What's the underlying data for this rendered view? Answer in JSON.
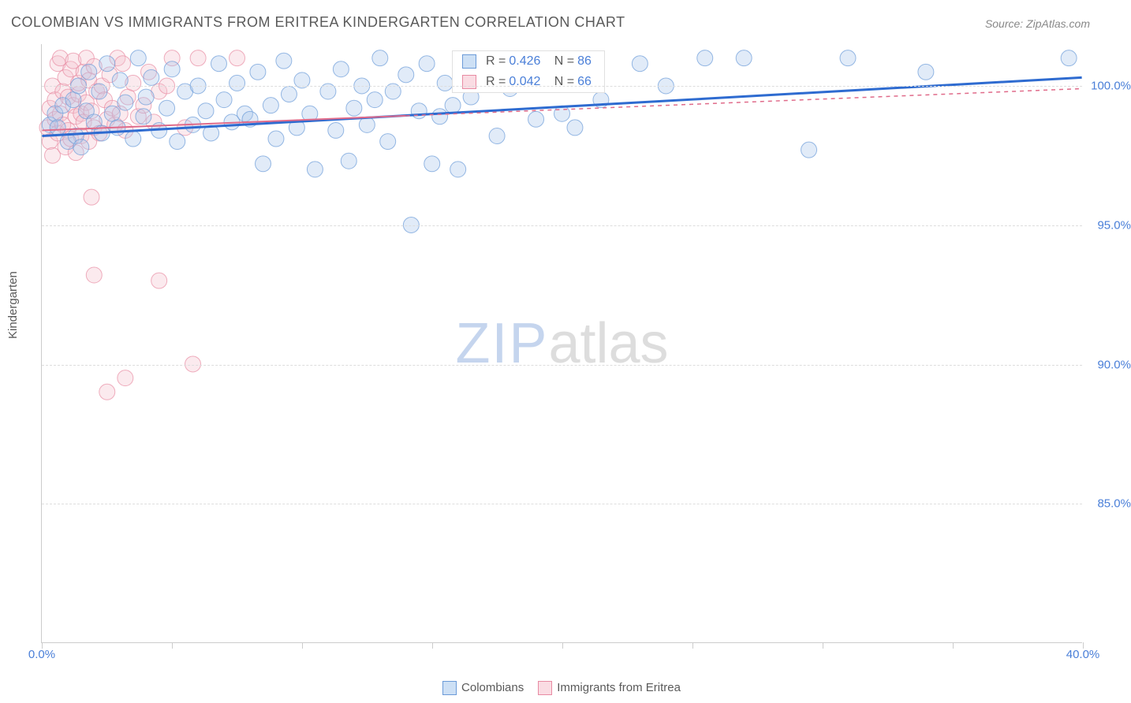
{
  "title": "COLOMBIAN VS IMMIGRANTS FROM ERITREA KINDERGARTEN CORRELATION CHART",
  "source_label": "Source: ZipAtlas.com",
  "y_axis_label": "Kindergarten",
  "watermark": {
    "part1": "ZIP",
    "part2": "atlas"
  },
  "chart": {
    "type": "scatter",
    "background_color": "#ffffff",
    "grid_color": "#dddddd",
    "axis_color": "#cccccc",
    "tick_label_color": "#4a7fd8",
    "text_color": "#5a5a5a",
    "xlim": [
      0,
      40
    ],
    "ylim": [
      80,
      101.5
    ],
    "y_ticks": [
      85,
      90,
      95,
      100
    ],
    "y_tick_labels": [
      "85.0%",
      "90.0%",
      "95.0%",
      "100.0%"
    ],
    "x_ticks": [
      0,
      5,
      10,
      15,
      20,
      25,
      30,
      35,
      40
    ],
    "x_tick_labels": [
      "0.0%",
      "",
      "",
      "",
      "",
      "",
      "",
      "",
      "40.0%"
    ],
    "marker_radius": 10,
    "marker_opacity": 0.35,
    "series": [
      {
        "name": "Colombians",
        "color_fill": "#a9c6ec",
        "color_stroke": "#6b9bd8",
        "swatch_fill": "#cde0f5",
        "swatch_border": "#6b9bd8",
        "R": "0.426",
        "N": "86",
        "trend": {
          "x1": 0,
          "y1": 98.2,
          "x2": 40,
          "y2": 100.3,
          "solid_to_x": 40,
          "stroke": "#2e6bd0",
          "width": 3
        },
        "points": [
          [
            0.3,
            98.6
          ],
          [
            0.5,
            99.0
          ],
          [
            0.6,
            98.5
          ],
          [
            0.8,
            99.3
          ],
          [
            1.0,
            98.0
          ],
          [
            1.2,
            99.5
          ],
          [
            1.3,
            98.2
          ],
          [
            1.4,
            100.0
          ],
          [
            1.5,
            97.8
          ],
          [
            1.7,
            99.1
          ],
          [
            1.8,
            100.5
          ],
          [
            2.0,
            98.7
          ],
          [
            2.2,
            99.8
          ],
          [
            2.3,
            98.3
          ],
          [
            2.5,
            100.8
          ],
          [
            2.7,
            99.0
          ],
          [
            2.9,
            98.5
          ],
          [
            3.0,
            100.2
          ],
          [
            3.2,
            99.4
          ],
          [
            3.5,
            98.1
          ],
          [
            3.7,
            101.0
          ],
          [
            3.9,
            98.9
          ],
          [
            4.0,
            99.6
          ],
          [
            4.2,
            100.3
          ],
          [
            4.5,
            98.4
          ],
          [
            4.8,
            99.2
          ],
          [
            5.0,
            100.6
          ],
          [
            5.2,
            98.0
          ],
          [
            5.5,
            99.8
          ],
          [
            5.8,
            98.6
          ],
          [
            6.0,
            100.0
          ],
          [
            6.3,
            99.1
          ],
          [
            6.5,
            98.3
          ],
          [
            6.8,
            100.8
          ],
          [
            7.0,
            99.5
          ],
          [
            7.3,
            98.7
          ],
          [
            7.5,
            100.1
          ],
          [
            7.8,
            99.0
          ],
          [
            8.0,
            98.8
          ],
          [
            8.3,
            100.5
          ],
          [
            8.5,
            97.2
          ],
          [
            8.8,
            99.3
          ],
          [
            9.0,
            98.1
          ],
          [
            9.3,
            100.9
          ],
          [
            9.5,
            99.7
          ],
          [
            9.8,
            98.5
          ],
          [
            10.0,
            100.2
          ],
          [
            10.3,
            99.0
          ],
          [
            10.5,
            97.0
          ],
          [
            11.0,
            99.8
          ],
          [
            11.3,
            98.4
          ],
          [
            11.5,
            100.6
          ],
          [
            11.8,
            97.3
          ],
          [
            12.0,
            99.2
          ],
          [
            12.3,
            100.0
          ],
          [
            12.5,
            98.6
          ],
          [
            12.8,
            99.5
          ],
          [
            13.0,
            101.0
          ],
          [
            13.3,
            98.0
          ],
          [
            13.5,
            99.8
          ],
          [
            14.0,
            100.4
          ],
          [
            14.2,
            95.0
          ],
          [
            14.5,
            99.1
          ],
          [
            14.8,
            100.8
          ],
          [
            15.0,
            97.2
          ],
          [
            15.3,
            98.9
          ],
          [
            15.5,
            100.1
          ],
          [
            15.8,
            99.3
          ],
          [
            16.0,
            97.0
          ],
          [
            16.5,
            99.6
          ],
          [
            17.0,
            100.5
          ],
          [
            17.5,
            98.2
          ],
          [
            18.0,
            99.9
          ],
          [
            18.5,
            100.7
          ],
          [
            19.0,
            98.8
          ],
          [
            20.0,
            99.0
          ],
          [
            20.5,
            98.5
          ],
          [
            21.5,
            99.5
          ],
          [
            23.0,
            100.8
          ],
          [
            24.0,
            100.0
          ],
          [
            25.5,
            101.0
          ],
          [
            27.0,
            101.0
          ],
          [
            29.5,
            97.7
          ],
          [
            31.0,
            101.0
          ],
          [
            34.0,
            100.5
          ],
          [
            39.5,
            101.0
          ]
        ]
      },
      {
        "name": "Immigrants from Eritrea",
        "color_fill": "#f4c2ce",
        "color_stroke": "#e88ba3",
        "swatch_fill": "#fadce3",
        "swatch_border": "#e88ba3",
        "R": "0.042",
        "N": "66",
        "trend": {
          "x1": 0,
          "y1": 98.4,
          "x2": 40,
          "y2": 99.9,
          "solid_to_x": 14,
          "stroke": "#e06b8a",
          "width": 2
        },
        "points": [
          [
            0.2,
            98.5
          ],
          [
            0.3,
            99.2
          ],
          [
            0.3,
            98.0
          ],
          [
            0.4,
            100.0
          ],
          [
            0.4,
            97.5
          ],
          [
            0.5,
            99.5
          ],
          [
            0.5,
            98.8
          ],
          [
            0.6,
            100.8
          ],
          [
            0.6,
            98.3
          ],
          [
            0.7,
            99.0
          ],
          [
            0.7,
            101.0
          ],
          [
            0.8,
            98.6
          ],
          [
            0.8,
            99.8
          ],
          [
            0.9,
            97.8
          ],
          [
            0.9,
            100.3
          ],
          [
            1.0,
            98.4
          ],
          [
            1.0,
            99.6
          ],
          [
            1.1,
            100.6
          ],
          [
            1.1,
            98.1
          ],
          [
            1.2,
            99.3
          ],
          [
            1.2,
            100.9
          ],
          [
            1.3,
            98.9
          ],
          [
            1.3,
            97.6
          ],
          [
            1.4,
            99.7
          ],
          [
            1.4,
            100.1
          ],
          [
            1.5,
            98.2
          ],
          [
            1.5,
            99.0
          ],
          [
            1.6,
            100.5
          ],
          [
            1.6,
            98.7
          ],
          [
            1.7,
            101.0
          ],
          [
            1.7,
            99.4
          ],
          [
            1.8,
            98.0
          ],
          [
            1.8,
            100.2
          ],
          [
            1.9,
            99.1
          ],
          [
            1.9,
            96.0
          ],
          [
            2.0,
            98.5
          ],
          [
            2.0,
            100.7
          ],
          [
            2.1,
            99.8
          ],
          [
            2.2,
            98.3
          ],
          [
            2.3,
            100.0
          ],
          [
            2.4,
            99.5
          ],
          [
            2.5,
            98.8
          ],
          [
            2.6,
            100.4
          ],
          [
            2.7,
            99.2
          ],
          [
            2.8,
            98.6
          ],
          [
            2.9,
            101.0
          ],
          [
            3.0,
            99.0
          ],
          [
            3.1,
            100.8
          ],
          [
            3.2,
            98.4
          ],
          [
            3.3,
            99.6
          ],
          [
            3.5,
            100.1
          ],
          [
            3.7,
            98.9
          ],
          [
            3.9,
            99.3
          ],
          [
            4.1,
            100.5
          ],
          [
            4.3,
            98.7
          ],
          [
            4.5,
            99.8
          ],
          [
            4.8,
            100.0
          ],
          [
            5.0,
            101.0
          ],
          [
            5.5,
            98.5
          ],
          [
            6.0,
            101.0
          ],
          [
            2.0,
            93.2
          ],
          [
            2.5,
            89.0
          ],
          [
            3.2,
            89.5
          ],
          [
            4.5,
            93.0
          ],
          [
            5.8,
            90.0
          ],
          [
            7.5,
            101.0
          ]
        ]
      }
    ]
  },
  "stats_box": {
    "rows": [
      {
        "swatch_fill": "#cde0f5",
        "swatch_border": "#6b9bd8",
        "r_label": "R =",
        "r_val": "0.426",
        "n_label": "N =",
        "n_val": "86"
      },
      {
        "swatch_fill": "#fadce3",
        "swatch_border": "#e88ba3",
        "r_label": "R =",
        "r_val": "0.042",
        "n_label": "N =",
        "n_val": "66"
      }
    ]
  },
  "bottom_legend": [
    {
      "swatch_fill": "#cde0f5",
      "swatch_border": "#6b9bd8",
      "label": "Colombians"
    },
    {
      "swatch_fill": "#fadce3",
      "swatch_border": "#e88ba3",
      "label": "Immigrants from Eritrea"
    }
  ]
}
